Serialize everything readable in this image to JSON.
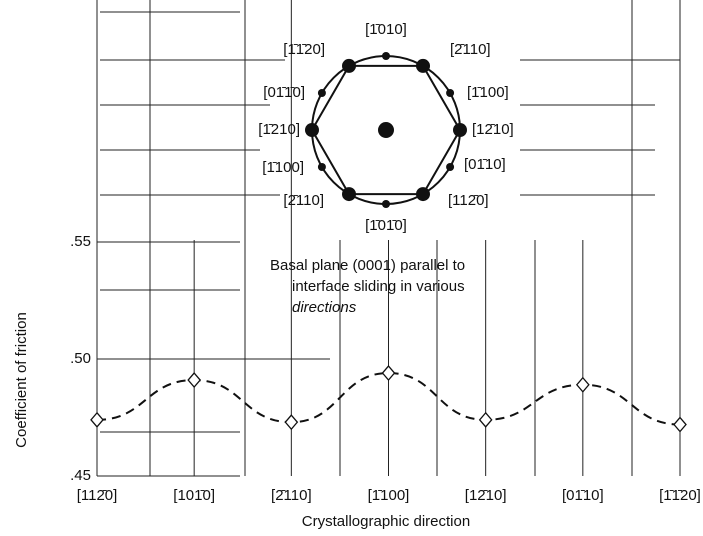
{
  "chart_data": {
    "type": "line",
    "xlabel": "Crystallographic direction",
    "ylabel": "Coefficient of friction",
    "categories": [
      "[112̄0]",
      "[101̄0]",
      "[2̄110]",
      "[1̄100]",
      "[12̄10]",
      "[01̄10]",
      "[1̄1̄20]"
    ],
    "series": [
      {
        "values": [
          0.474,
          0.491,
          0.473,
          0.494,
          0.474,
          0.489,
          0.472
        ],
        "color": "#111"
      }
    ],
    "ylim": [
      0.45,
      0.65
    ],
    "yticks": [
      {
        "value": 0.45,
        "label": ".45"
      },
      {
        "value": 0.5,
        "label": ".50"
      },
      {
        "value": 0.55,
        "label": ".55"
      }
    ],
    "grid": true,
    "annotation": [
      "Basal plane (0001) parallel to",
      "interface sliding in various",
      "directions"
    ],
    "inset_labels": [
      "[1̄010]",
      "[2̄110]",
      "[1̄100]",
      "[12̄10]",
      "[01̄10]",
      "[112̄0]",
      "[1̄01̄0]",
      "[2̄110]",
      "[1̄100]",
      "[1̄210]",
      "[01̄1̄0]",
      "[1̄1̄20]"
    ]
  }
}
